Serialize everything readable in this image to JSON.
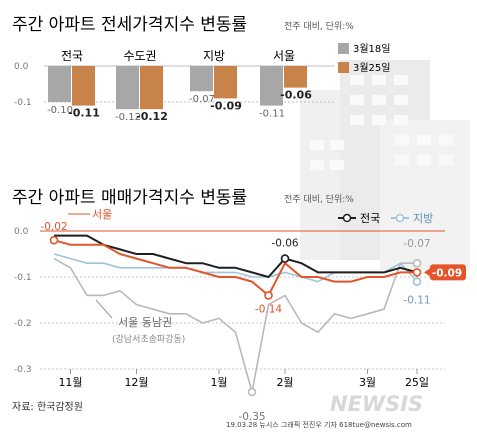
{
  "colors": {
    "series_a": "#a7a7a7",
    "series_b": "#c8834a",
    "national": "#1f1f1f",
    "seoul": "#e2552a",
    "local": "#9ec3dc",
    "gangnam": "#b9b9b9",
    "zero_line": "#e2552a",
    "highlight_badge": "#e2552a"
  },
  "chart_data": [
    {
      "type": "bar",
      "title": "주간 아파트 전세가격지수 변동률",
      "subtitle": "전주 대비, 단위:%",
      "categories": [
        "전국",
        "수도권",
        "지방",
        "서울"
      ],
      "series": [
        {
          "name": "3월18일",
          "values": [
            -0.1,
            -0.12,
            -0.07,
            -0.11
          ],
          "labels": [
            "-0.10",
            "-0.12",
            "-0.07",
            "-0.11"
          ]
        },
        {
          "name": "3월25일",
          "values": [
            -0.11,
            -0.12,
            -0.09,
            -0.06
          ],
          "labels": [
            "-0.11",
            "-0.12",
            "-0.09",
            "-0.06"
          ]
        }
      ],
      "yticks": [
        "0.0",
        "-0.1"
      ],
      "ylim": [
        -0.14,
        0.0
      ],
      "legend": "right"
    },
    {
      "type": "line",
      "title": "주간 아파트 매매가격지수 변동률",
      "subtitle": "전주 대비, 단위:%",
      "x_ticks": [
        "11월",
        "12월",
        "1월",
        "2월",
        "3월",
        "25일"
      ],
      "x_tick_index": [
        1,
        5,
        10,
        14,
        19,
        22
      ],
      "yticks": [
        "0.0",
        "-0.1",
        "-0.2",
        "-0.3"
      ],
      "ylim": [
        -0.3,
        0.0
      ],
      "legend": "top-right",
      "series": [
        {
          "name": "전국",
          "values": [
            -0.01,
            -0.01,
            -0.01,
            -0.03,
            -0.04,
            -0.05,
            -0.05,
            -0.06,
            -0.07,
            -0.07,
            -0.08,
            -0.08,
            -0.09,
            -0.1,
            -0.06,
            -0.07,
            -0.09,
            -0.09,
            -0.09,
            -0.09,
            -0.09,
            -0.08,
            -0.09
          ]
        },
        {
          "name": "지방",
          "values": [
            -0.05,
            -0.06,
            -0.07,
            -0.07,
            -0.08,
            -0.08,
            -0.08,
            -0.08,
            -0.08,
            -0.09,
            -0.09,
            -0.09,
            -0.1,
            -0.1,
            -0.09,
            -0.1,
            -0.11,
            -0.09,
            -0.09,
            -0.09,
            -0.09,
            -0.07,
            -0.11
          ]
        },
        {
          "name": "서울",
          "values": [
            -0.02,
            -0.03,
            -0.03,
            -0.03,
            -0.05,
            -0.06,
            -0.07,
            -0.08,
            -0.08,
            -0.09,
            -0.1,
            -0.1,
            -0.11,
            -0.14,
            -0.07,
            -0.1,
            -0.1,
            -0.11,
            -0.11,
            -0.1,
            -0.1,
            -0.09,
            -0.09
          ]
        },
        {
          "name": "서울 동남권",
          "values": [
            -0.06,
            -0.08,
            -0.14,
            -0.14,
            -0.13,
            -0.16,
            -0.17,
            -0.18,
            -0.18,
            -0.2,
            -0.19,
            -0.22,
            -0.35,
            -0.16,
            -0.14,
            -0.2,
            -0.22,
            -0.18,
            -0.19,
            -0.18,
            -0.17,
            -0.07,
            -0.07
          ]
        }
      ],
      "annotations": [
        {
          "series": "서울",
          "index": 0,
          "label": "-0.02"
        },
        {
          "series": "서울",
          "index": 13,
          "label": "-0.14"
        },
        {
          "series": "전국",
          "index": 14,
          "label": "-0.06"
        },
        {
          "series": "서울 동남권",
          "index": 12,
          "label": "-0.35"
        },
        {
          "series": "서울 동남권",
          "index": 22,
          "label": "-0.07"
        },
        {
          "series": "지방",
          "index": 22,
          "label": "-0.11"
        },
        {
          "series": "서울",
          "index": 22,
          "label": "-0.09"
        }
      ],
      "series_labels": {
        "seoul": "서울",
        "gangnam": "서울 동남권",
        "gangnam_sub": "(강남서초송파강동)"
      }
    }
  ],
  "footer": {
    "source": "자료: 한국감정원",
    "credit": "19.03.28  뉴시스 그래픽  전진우 기자  618tue@newsis.com",
    "logo": "NEWSIS"
  }
}
